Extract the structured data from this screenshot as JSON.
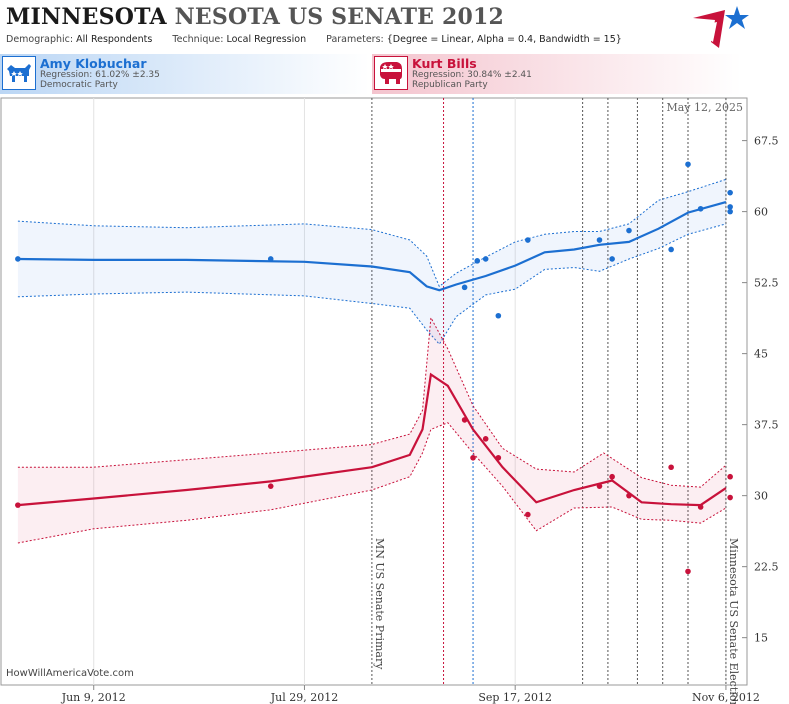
{
  "header": {
    "title_part1": "MINNESOTA",
    "title_part2": "NESOTA US SENATE 2012",
    "demographic_label": "Demographic:",
    "demographic_value": "All Respondents",
    "technique_label": "Technique:",
    "technique_value": "Local Regression",
    "parameters_label": "Parameters:",
    "parameters_value": "{Degree = Linear, Alpha = 0.4, Bandwidth = 15}",
    "logo_icon": "star-flag-logo-icon"
  },
  "candidates": [
    {
      "name": "Amy Klobuchar",
      "regression": "Regression: 61.02% ±2.35",
      "party": "Democratic Party",
      "icon": "donkey-icon",
      "color": "#1c6fd1"
    },
    {
      "name": "Kurt Bills",
      "regression": "Regression: 30.84% ±2.41",
      "party": "Republican Party",
      "icon": "elephant-icon",
      "color": "#c8123b"
    }
  ],
  "date_stamp": "May 12, 2025",
  "watermark": "HowWillAmericaVote.com",
  "chart_data": {
    "type": "line",
    "x_start": "2012-05-18",
    "x_end": "2012-11-11",
    "y_range": [
      10,
      72
    ],
    "y_ticks": [
      15,
      22.5,
      30,
      37.5,
      45,
      52.5,
      60,
      67.5
    ],
    "x_ticks": [
      {
        "date": "2012-06-09",
        "label": "Jun 9, 2012"
      },
      {
        "date": "2012-07-29",
        "label": "Jul 29, 2012"
      },
      {
        "date": "2012-09-17",
        "label": "Sep 17, 2012"
      },
      {
        "date": "2012-11-06",
        "label": "Nov 6, 2012"
      }
    ],
    "grid": "vertical",
    "events": [
      {
        "date": "2012-08-14",
        "label": "MN US Senate Primary",
        "color": "#555555",
        "dashed": true
      },
      {
        "date": "2012-08-31",
        "label": "",
        "color": "#c8123b",
        "dashed": true
      },
      {
        "date": "2012-09-07",
        "label": "",
        "color": "#1c6fd1",
        "dashed": true
      },
      {
        "date": "2012-10-03",
        "label": "",
        "color": "#555555",
        "dashed": true
      },
      {
        "date": "2012-10-09",
        "label": "",
        "color": "#555555",
        "dashed": true
      },
      {
        "date": "2012-10-16",
        "label": "",
        "color": "#555555",
        "dashed": true
      },
      {
        "date": "2012-10-22",
        "label": "",
        "color": "#555555",
        "dashed": true
      },
      {
        "date": "2012-10-28",
        "label": "",
        "color": "#555555",
        "dashed": true
      },
      {
        "date": "2012-11-06",
        "label": "Minnesota US Senate Election",
        "color": "#555555",
        "dashed": true
      }
    ],
    "series": [
      {
        "name": "Amy Klobuchar",
        "color": "#1c6fd1",
        "fill": "rgba(40,120,220,0.07)",
        "trend": [
          [
            "2012-05-22",
            55.0
          ],
          [
            "2012-06-09",
            54.9
          ],
          [
            "2012-07-01",
            54.9
          ],
          [
            "2012-07-29",
            54.7
          ],
          [
            "2012-08-14",
            54.2
          ],
          [
            "2012-08-23",
            53.6
          ],
          [
            "2012-08-27",
            52.1
          ],
          [
            "2012-08-30",
            51.7
          ],
          [
            "2012-09-03",
            52.3
          ],
          [
            "2012-09-10",
            53.2
          ],
          [
            "2012-09-17",
            54.3
          ],
          [
            "2012-09-24",
            55.7
          ],
          [
            "2012-10-01",
            56.0
          ],
          [
            "2012-10-07",
            56.5
          ],
          [
            "2012-10-14",
            56.8
          ],
          [
            "2012-10-21",
            58.2
          ],
          [
            "2012-10-28",
            59.9
          ],
          [
            "2012-11-06",
            61.0
          ]
        ],
        "upper": [
          [
            "2012-05-22",
            59.0
          ],
          [
            "2012-06-09",
            58.5
          ],
          [
            "2012-07-01",
            58.3
          ],
          [
            "2012-07-29",
            58.7
          ],
          [
            "2012-08-14",
            58.1
          ],
          [
            "2012-08-23",
            57.0
          ],
          [
            "2012-08-27",
            55.3
          ],
          [
            "2012-08-30",
            52.1
          ],
          [
            "2012-09-03",
            53.5
          ],
          [
            "2012-09-10",
            55.2
          ],
          [
            "2012-09-17",
            56.8
          ],
          [
            "2012-09-24",
            57.6
          ],
          [
            "2012-10-01",
            57.9
          ],
          [
            "2012-10-07",
            57.9
          ],
          [
            "2012-10-14",
            58.7
          ],
          [
            "2012-10-21",
            61.2
          ],
          [
            "2012-10-28",
            62.1
          ],
          [
            "2012-11-06",
            63.4
          ]
        ],
        "lower": [
          [
            "2012-05-22",
            51.0
          ],
          [
            "2012-06-09",
            51.3
          ],
          [
            "2012-07-01",
            51.5
          ],
          [
            "2012-07-29",
            51.1
          ],
          [
            "2012-08-14",
            50.3
          ],
          [
            "2012-08-23",
            49.8
          ],
          [
            "2012-08-27",
            47.5
          ],
          [
            "2012-08-30",
            46.0
          ],
          [
            "2012-09-03",
            48.9
          ],
          [
            "2012-09-10",
            51.2
          ],
          [
            "2012-09-17",
            51.8
          ],
          [
            "2012-09-24",
            53.9
          ],
          [
            "2012-10-01",
            54.1
          ],
          [
            "2012-10-07",
            53.7
          ],
          [
            "2012-10-14",
            55.0
          ],
          [
            "2012-10-21",
            56.1
          ],
          [
            "2012-10-28",
            57.6
          ],
          [
            "2012-11-06",
            58.7
          ]
        ],
        "points": [
          [
            "2012-05-22",
            55.0
          ],
          [
            "2012-07-21",
            55.0
          ],
          [
            "2012-09-05",
            52.0
          ],
          [
            "2012-09-08",
            54.8
          ],
          [
            "2012-09-10",
            55.0
          ],
          [
            "2012-09-13",
            49.0
          ],
          [
            "2012-09-20",
            57.0
          ],
          [
            "2012-10-07",
            57.0
          ],
          [
            "2012-10-10",
            55.0
          ],
          [
            "2012-10-14",
            58.0
          ],
          [
            "2012-10-24",
            56.0
          ],
          [
            "2012-10-28",
            65.0
          ],
          [
            "2012-10-31",
            60.3
          ],
          [
            "2012-11-07",
            62.0
          ],
          [
            "2012-11-07",
            60.5
          ],
          [
            "2012-11-07",
            60.0
          ]
        ]
      },
      {
        "name": "Kurt Bills",
        "color": "#c8123b",
        "fill": "rgba(220,40,90,0.08)",
        "trend": [
          [
            "2012-05-22",
            29.0
          ],
          [
            "2012-06-09",
            29.7
          ],
          [
            "2012-07-01",
            30.6
          ],
          [
            "2012-07-21",
            31.5
          ],
          [
            "2012-08-14",
            33.0
          ],
          [
            "2012-08-23",
            34.3
          ],
          [
            "2012-08-26",
            37.0
          ],
          [
            "2012-08-28",
            42.8
          ],
          [
            "2012-09-01",
            41.6
          ],
          [
            "2012-09-07",
            37.0
          ],
          [
            "2012-09-14",
            33.0
          ],
          [
            "2012-09-22",
            29.3
          ],
          [
            "2012-10-01",
            30.6
          ],
          [
            "2012-10-10",
            31.6
          ],
          [
            "2012-10-17",
            29.3
          ],
          [
            "2012-10-24",
            29.1
          ],
          [
            "2012-10-31",
            29.0
          ],
          [
            "2012-11-06",
            30.8
          ]
        ],
        "upper": [
          [
            "2012-05-22",
            33.0
          ],
          [
            "2012-06-09",
            33.0
          ],
          [
            "2012-07-01",
            33.8
          ],
          [
            "2012-07-21",
            34.5
          ],
          [
            "2012-08-14",
            35.4
          ],
          [
            "2012-08-23",
            36.5
          ],
          [
            "2012-08-26",
            39.0
          ],
          [
            "2012-08-28",
            48.8
          ],
          [
            "2012-09-01",
            45.5
          ],
          [
            "2012-09-07",
            39.5
          ],
          [
            "2012-09-14",
            35.0
          ],
          [
            "2012-09-22",
            32.8
          ],
          [
            "2012-10-01",
            32.5
          ],
          [
            "2012-10-08",
            34.5
          ],
          [
            "2012-10-17",
            31.9
          ],
          [
            "2012-10-24",
            31.1
          ],
          [
            "2012-10-31",
            30.9
          ],
          [
            "2012-11-06",
            33.2
          ]
        ],
        "lower": [
          [
            "2012-05-22",
            25.0
          ],
          [
            "2012-06-09",
            26.5
          ],
          [
            "2012-07-01",
            27.4
          ],
          [
            "2012-07-21",
            28.5
          ],
          [
            "2012-08-14",
            30.6
          ],
          [
            "2012-08-23",
            32.0
          ],
          [
            "2012-08-26",
            34.5
          ],
          [
            "2012-08-28",
            37.0
          ],
          [
            "2012-09-01",
            37.7
          ],
          [
            "2012-09-07",
            34.5
          ],
          [
            "2012-09-14",
            31.0
          ],
          [
            "2012-09-22",
            26.3
          ],
          [
            "2012-10-01",
            28.7
          ],
          [
            "2012-10-10",
            28.8
          ],
          [
            "2012-10-17",
            27.5
          ],
          [
            "2012-10-24",
            27.4
          ],
          [
            "2012-10-31",
            27.1
          ],
          [
            "2012-11-06",
            28.7
          ]
        ],
        "points": [
          [
            "2012-05-22",
            29.0
          ],
          [
            "2012-07-21",
            31.0
          ],
          [
            "2012-09-05",
            38.0
          ],
          [
            "2012-09-07",
            34.0
          ],
          [
            "2012-09-10",
            36.0
          ],
          [
            "2012-09-13",
            34.0
          ],
          [
            "2012-09-20",
            28.0
          ],
          [
            "2012-10-07",
            31.0
          ],
          [
            "2012-10-10",
            32.0
          ],
          [
            "2012-10-14",
            30.0
          ],
          [
            "2012-10-24",
            33.0
          ],
          [
            "2012-10-28",
            22.0
          ],
          [
            "2012-10-31",
            28.8
          ],
          [
            "2012-11-07",
            32.0
          ],
          [
            "2012-11-07",
            29.8
          ]
        ]
      }
    ]
  }
}
